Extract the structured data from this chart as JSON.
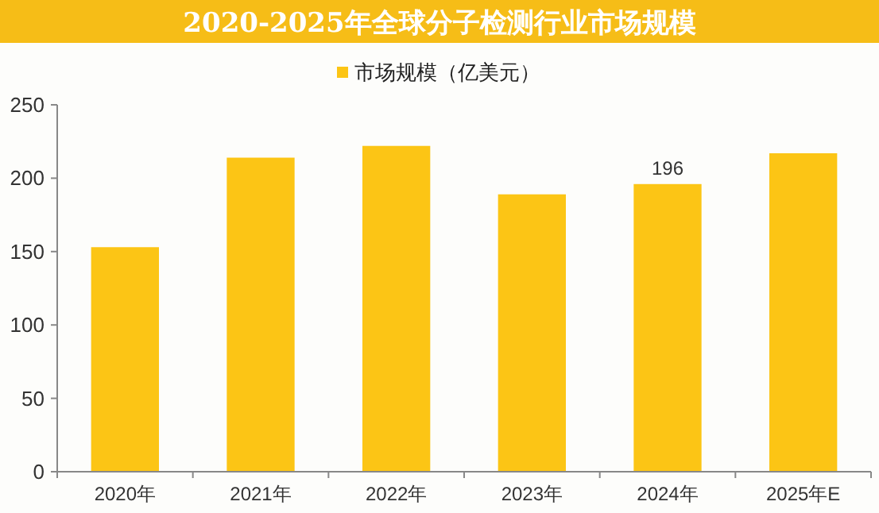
{
  "chart_data": {
    "type": "bar",
    "title": "2020-2025年全球分子检测行业市场规模",
    "categories": [
      "2020年",
      "2021年",
      "2022年",
      "2023年",
      "2024年",
      "2025年E"
    ],
    "series": [
      {
        "name": "市场规模（亿美元）",
        "color": "#fcc515",
        "values": [
          153,
          214,
          222,
          189,
          196,
          217
        ],
        "value_labels": [
          null,
          null,
          null,
          null,
          "196",
          null
        ]
      }
    ],
    "ylim": [
      0,
      250
    ],
    "yticks": [
      0,
      50,
      100,
      150,
      200,
      250
    ],
    "grid": false,
    "legend": "top"
  }
}
